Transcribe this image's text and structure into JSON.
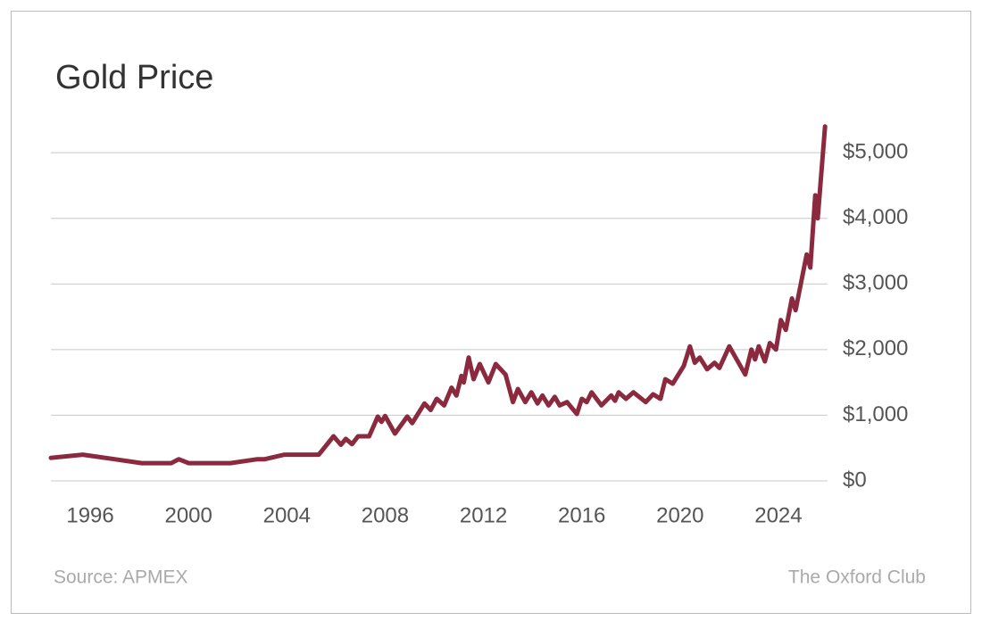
{
  "chart_data": {
    "type": "line",
    "title": "Gold Price",
    "source": "Source: APMEX",
    "brand": "The Oxford Club",
    "color": "#8b2a3f",
    "grid": true,
    "x": [
      1994.4,
      1995.7,
      1998.1,
      1999.3,
      1999.6,
      2000.0,
      2001.7,
      2002.8,
      2003.1,
      2003.9,
      2005.3,
      2005.9,
      2006.2,
      2006.4,
      2006.65,
      2006.9,
      2007.35,
      2007.7,
      2007.85,
      2008.0,
      2008.4,
      2008.9,
      2009.1,
      2009.6,
      2009.85,
      2010.1,
      2010.4,
      2010.7,
      2010.9,
      2011.1,
      2011.2,
      2011.4,
      2011.6,
      2011.85,
      2012.2,
      2012.5,
      2012.9,
      2013.2,
      2013.4,
      2013.7,
      2013.95,
      2014.2,
      2014.4,
      2014.65,
      2014.9,
      2015.1,
      2015.4,
      2015.8,
      2016.0,
      2016.2,
      2016.4,
      2016.8,
      2017.2,
      2017.35,
      2017.5,
      2017.8,
      2018.1,
      2018.6,
      2018.9,
      2019.2,
      2019.4,
      2019.7,
      2020.15,
      2020.4,
      2020.6,
      2020.8,
      2021.1,
      2021.4,
      2021.6,
      2022.0,
      2022.65,
      2022.9,
      2023.05,
      2023.2,
      2023.45,
      2023.65,
      2023.9,
      2024.1,
      2024.3,
      2024.55,
      2024.7,
      2025.15,
      2025.3,
      2025.5,
      2025.6,
      2025.9
    ],
    "values": [
      350,
      400,
      270,
      270,
      330,
      270,
      270,
      330,
      330,
      400,
      400,
      680,
      550,
      640,
      560,
      680,
      680,
      980,
      900,
      990,
      720,
      980,
      880,
      1180,
      1080,
      1250,
      1150,
      1420,
      1300,
      1600,
      1500,
      1880,
      1550,
      1780,
      1500,
      1780,
      1620,
      1200,
      1400,
      1200,
      1350,
      1180,
      1300,
      1150,
      1280,
      1150,
      1200,
      1020,
      1250,
      1200,
      1350,
      1150,
      1300,
      1220,
      1350,
      1250,
      1350,
      1200,
      1320,
      1250,
      1550,
      1480,
      1750,
      2050,
      1800,
      1880,
      1700,
      1800,
      1720,
      2050,
      1620,
      2000,
      1850,
      2050,
      1820,
      2100,
      2000,
      2450,
      2300,
      2780,
      2600,
      3450,
      3250,
      4350,
      4000,
      5400
    ],
    "xlim": [
      1994.4,
      2026
    ],
    "xticks": [
      1996,
      2000,
      2004,
      2008,
      2012,
      2016,
      2020,
      2024
    ],
    "ylim": [
      0,
      5450
    ],
    "yticks": [
      {
        "value": 0,
        "label": "$0"
      },
      {
        "value": 1000,
        "label": "$1,000"
      },
      {
        "value": 2000,
        "label": "$2,000"
      },
      {
        "value": 3000,
        "label": "$3,000"
      },
      {
        "value": 4000,
        "label": "$4,000"
      },
      {
        "value": 5000,
        "label": "$5,000"
      }
    ]
  }
}
